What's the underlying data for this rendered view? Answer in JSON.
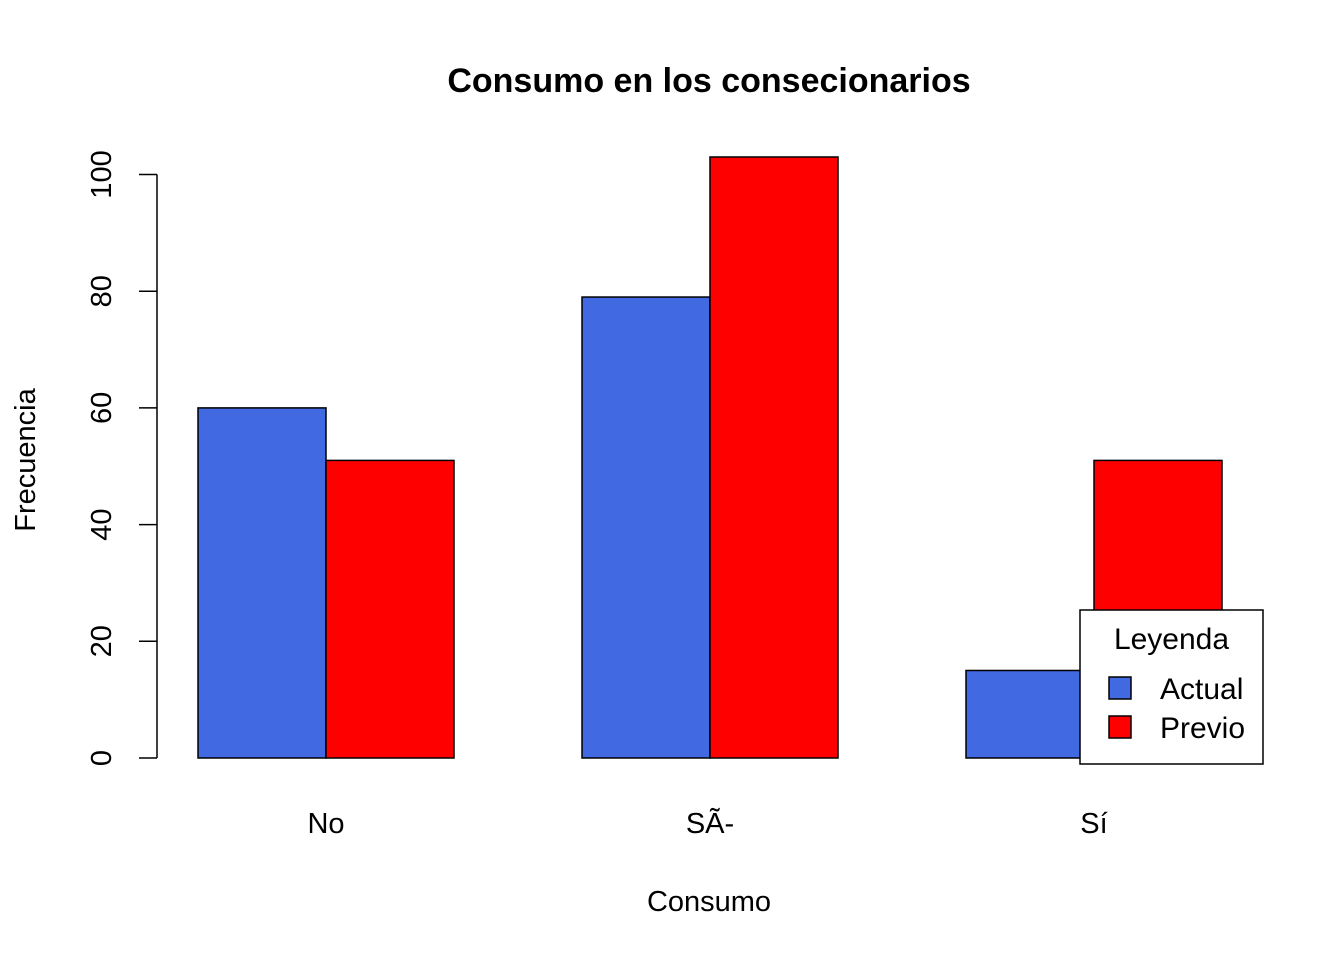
{
  "chart_data": {
    "type": "bar",
    "title": "Consumo en los consecionarios",
    "xlabel": "Consumo",
    "ylabel": "Frecuencia",
    "categories": [
      "No",
      "SÃ-",
      "Sí"
    ],
    "series": [
      {
        "name": "Actual",
        "color": "#4169E1",
        "values": [
          60,
          79,
          15
        ]
      },
      {
        "name": "Previo",
        "color": "#FF0000",
        "values": [
          51,
          103,
          51
        ]
      }
    ],
    "ylim": [
      0,
      103
    ],
    "yticks": [
      0,
      20,
      40,
      60,
      80,
      100
    ],
    "grid": false,
    "legend": {
      "title": "Leyenda",
      "placement": "bottom-right"
    }
  }
}
